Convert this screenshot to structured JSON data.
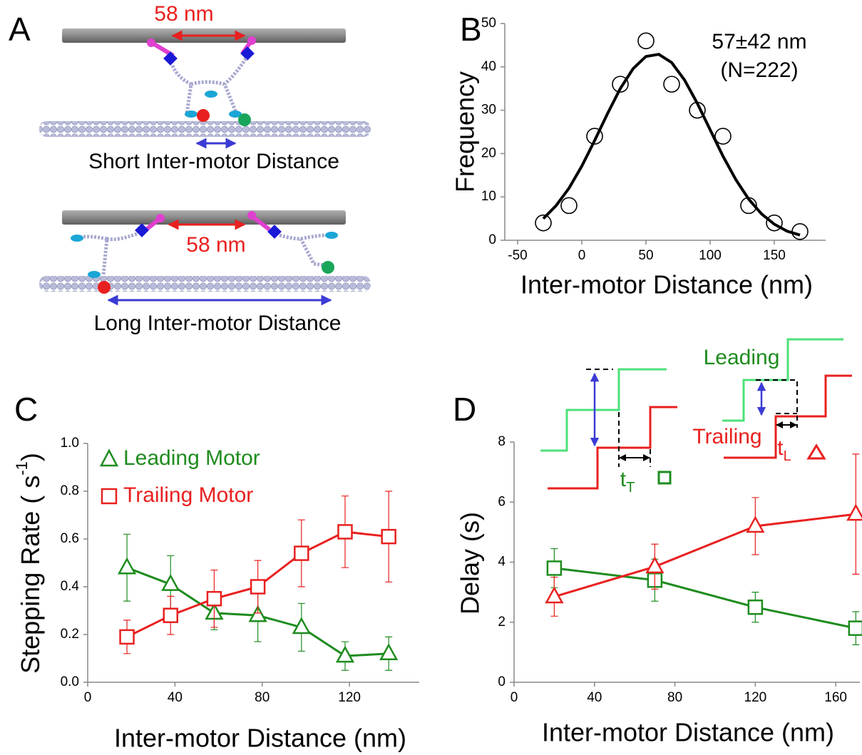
{
  "diagram": {
    "label": "A",
    "top_distance": "58 nm",
    "top_caption": "Short Inter-motor Distance",
    "bottom_distance": "58 nm",
    "bottom_caption": "Long Inter-motor Distance"
  },
  "chart_data": [
    {
      "type": "scatter",
      "label": "B",
      "xlabel": "Inter-motor Distance (nm)",
      "ylabel": "Frequency",
      "annotations": [
        "57±42 nm",
        "(N=222)"
      ],
      "xlim": [
        -60,
        190
      ],
      "xticks": [
        -50,
        0,
        50,
        100,
        150
      ],
      "ylim": [
        0,
        50
      ],
      "yticks": [
        0,
        10,
        20,
        30,
        40,
        50
      ],
      "series": [
        {
          "color": "#000000",
          "marker": "circle",
          "x": [
            -30,
            -10,
            10,
            30,
            50,
            70,
            90,
            110,
            130,
            150,
            170
          ],
          "values": [
            4,
            8,
            24,
            36,
            46,
            36,
            30,
            24,
            8,
            4,
            2
          ]
        },
        {
          "type": "line",
          "color": "#000000",
          "x": [
            -30,
            -20,
            -10,
            0,
            10,
            20,
            30,
            40,
            50,
            60,
            70,
            80,
            90,
            100,
            110,
            120,
            130,
            140,
            150,
            160,
            170
          ],
          "values": [
            5.0,
            8.0,
            12.0,
            17.1,
            23.0,
            29.2,
            35.0,
            39.6,
            42.4,
            42.9,
            41.0,
            37.0,
            31.6,
            25.5,
            19.4,
            14.0,
            9.5,
            6.1,
            3.7,
            2.1,
            1.2
          ]
        }
      ]
    },
    {
      "type": "line",
      "label": "C",
      "xlabel": "Inter-motor Distance (nm)",
      "ylabel": [
        "Stepping Rate ( s",
        "-1",
        ")"
      ],
      "xlim": [
        0,
        152
      ],
      "xticks": [
        0,
        40,
        80,
        120
      ],
      "ylim": [
        0,
        1
      ],
      "yticks": [
        {
          "value": 0,
          "label": "0.0"
        },
        0.2,
        0.4,
        0.6,
        0.8,
        {
          "value": 1,
          "label": "1.0"
        }
      ],
      "legend": "upper left",
      "series": [
        {
          "name": "Leading Motor",
          "color": "#1e8c1e",
          "marker": "triangle",
          "x": [
            18,
            38,
            58,
            78,
            98,
            118,
            138
          ],
          "values": [
            0.48,
            0.41,
            0.29,
            0.28,
            0.23,
            0.11,
            0.12
          ],
          "errors": [
            0.14,
            0.12,
            0.07,
            0.11,
            0.1,
            0.06,
            0.07
          ]
        },
        {
          "name": "Trailing Motor",
          "color": "#e8201f",
          "marker": "square",
          "x": [
            18,
            38,
            58,
            78,
            98,
            118,
            138
          ],
          "values": [
            0.19,
            0.28,
            0.35,
            0.4,
            0.54,
            0.63,
            0.61
          ],
          "errors": [
            0.07,
            0.08,
            0.12,
            0.11,
            0.14,
            0.15,
            0.19
          ]
        }
      ]
    },
    {
      "type": "line",
      "label": "D",
      "xlabel": "Inter-motor Distance (nm)",
      "ylabel": "Delay (s)",
      "annotations": [
        "Leading",
        "Trailing"
      ],
      "subscripted": [
        [
          "t",
          "T"
        ],
        [
          "t",
          "L"
        ]
      ],
      "xlim": [
        0,
        172
      ],
      "xticks": [
        0,
        40,
        80,
        120,
        160
      ],
      "ylim": [
        0,
        8
      ],
      "yticks": [
        0,
        2,
        4,
        6,
        8
      ],
      "series": [
        {
          "color": "#1e8c1e",
          "marker": "square",
          "x": [
            20,
            70,
            120,
            170
          ],
          "values": [
            3.8,
            3.4,
            2.5,
            1.8
          ],
          "errors": [
            0.65,
            0.7,
            0.5,
            0.55
          ]
        },
        {
          "color": "#e8201f",
          "marker": "triangle",
          "x": [
            20,
            70,
            120,
            170
          ],
          "values": [
            2.85,
            3.85,
            5.2,
            5.6
          ],
          "errors": [
            0.65,
            0.75,
            0.95,
            2.0
          ]
        }
      ]
    }
  ]
}
